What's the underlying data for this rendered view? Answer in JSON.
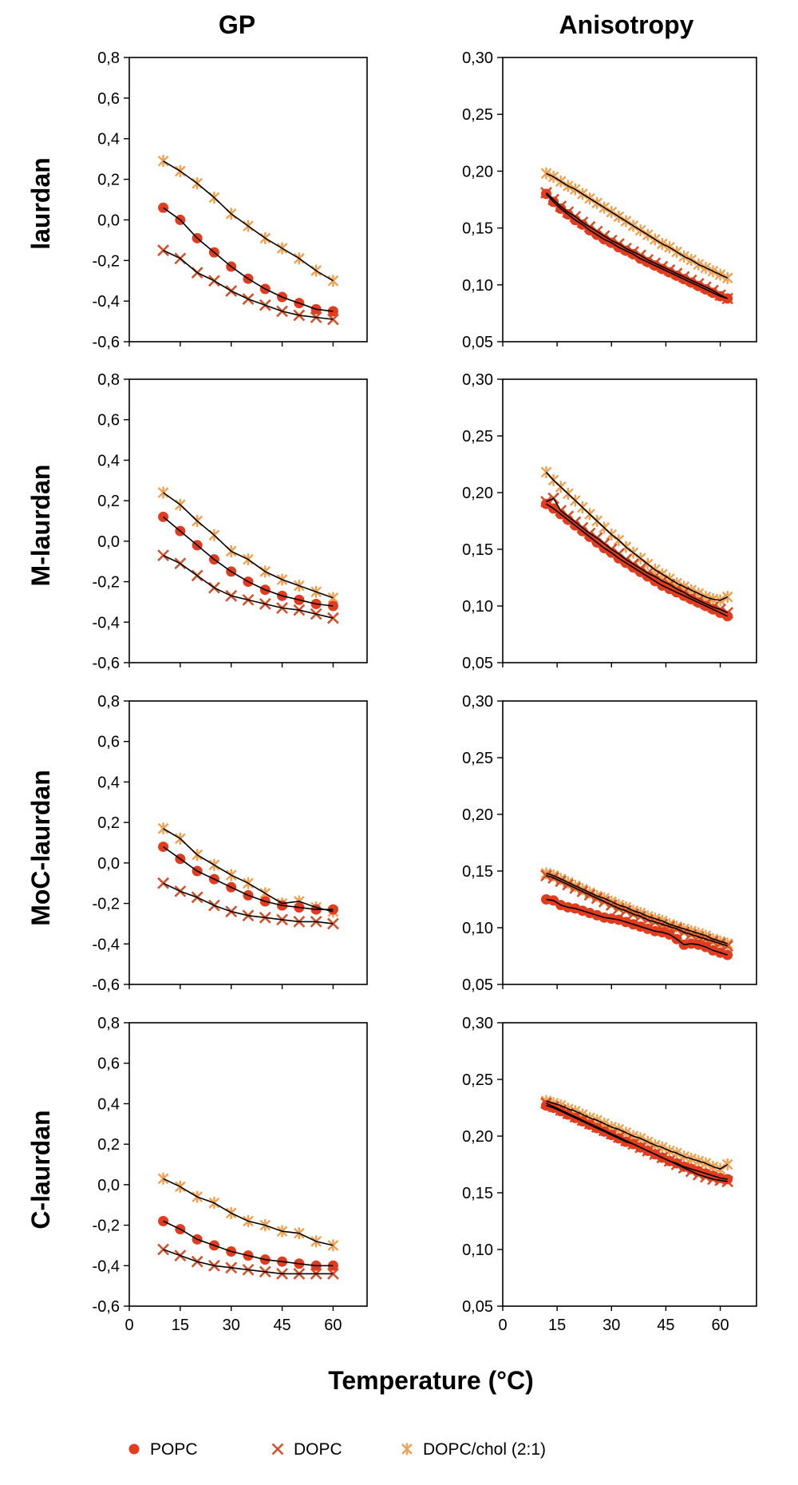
{
  "figure": {
    "column_titles": [
      "GP",
      "Anisotropy"
    ],
    "row_titles": [
      "laurdan",
      "M-laurdan",
      "MoC-laurdan",
      "C-laurdan"
    ],
    "xlabel": "Temperature (°C)"
  },
  "colors": {
    "POPC": "#e23c1e",
    "DOPC": "#d5512a",
    "DOPC/chol (2:1)": "#f0a050",
    "fit": "#000000"
  },
  "legend": [
    {
      "name": "POPC",
      "marker": "circle"
    },
    {
      "name": "DOPC",
      "marker": "cross"
    },
    {
      "name": "DOPC/chol (2:1)",
      "marker": "star"
    }
  ],
  "chart_data": [
    {
      "type": "line",
      "row": "laurdan",
      "column": "GP",
      "xlim": [
        0,
        70
      ],
      "ylim": [
        -0.6,
        0.8
      ],
      "xticks": [
        0,
        15,
        30,
        45,
        60
      ],
      "xtick_labels": [
        "0",
        "15",
        "30",
        "45",
        "60"
      ],
      "yticks": [
        -0.6,
        -0.4,
        -0.2,
        0.0,
        0.2,
        0.4,
        0.6,
        0.8
      ],
      "ytick_labels": [
        "-0,6",
        "-0,4",
        "-0,2",
        "0,0",
        "0,2",
        "0,4",
        "0,6",
        "0,8"
      ],
      "x": [
        10,
        15,
        20,
        25,
        30,
        35,
        40,
        45,
        50,
        55,
        60
      ],
      "series": [
        {
          "name": "POPC",
          "marker": "circle",
          "values": [
            0.06,
            0.0,
            -0.09,
            -0.16,
            -0.23,
            -0.29,
            -0.34,
            -0.38,
            -0.41,
            -0.44,
            -0.45
          ]
        },
        {
          "name": "DOPC",
          "marker": "cross",
          "values": [
            -0.15,
            -0.19,
            -0.26,
            -0.3,
            -0.35,
            -0.39,
            -0.42,
            -0.45,
            -0.47,
            -0.48,
            -0.49
          ]
        },
        {
          "name": "DOPC/chol (2:1)",
          "marker": "star",
          "values": [
            0.29,
            0.24,
            0.18,
            0.11,
            0.03,
            -0.03,
            -0.09,
            -0.14,
            -0.19,
            -0.25,
            -0.3
          ]
        }
      ]
    },
    {
      "type": "line",
      "row": "laurdan",
      "column": "Anisotropy",
      "xlim": [
        0,
        70
      ],
      "ylim": [
        0.05,
        0.3
      ],
      "xticks": [
        0,
        15,
        30,
        45,
        60
      ],
      "xtick_labels": [
        "0",
        "15",
        "30",
        "45",
        "60"
      ],
      "yticks": [
        0.05,
        0.1,
        0.15,
        0.2,
        0.25,
        0.3
      ],
      "ytick_labels": [
        "0,05",
        "0,10",
        "0,15",
        "0,20",
        "0,25",
        "0,30"
      ],
      "x": [
        12,
        14,
        16,
        18,
        20,
        22,
        24,
        26,
        28,
        30,
        32,
        34,
        36,
        38,
        40,
        42,
        44,
        46,
        48,
        50,
        52,
        54,
        56,
        58,
        60,
        62
      ],
      "series": [
        {
          "name": "POPC",
          "marker": "circle",
          "values": [
            0.18,
            0.173,
            0.167,
            0.162,
            0.157,
            0.153,
            0.148,
            0.144,
            0.14,
            0.137,
            0.133,
            0.13,
            0.127,
            0.123,
            0.12,
            0.117,
            0.114,
            0.111,
            0.108,
            0.105,
            0.102,
            0.099,
            0.096,
            0.093,
            0.09,
            0.088
          ]
        },
        {
          "name": "DOPC",
          "marker": "cross",
          "values": [
            0.181,
            0.175,
            0.169,
            0.164,
            0.16,
            0.155,
            0.151,
            0.147,
            0.143,
            0.139,
            0.136,
            0.132,
            0.129,
            0.126,
            0.122,
            0.119,
            0.116,
            0.113,
            0.11,
            0.107,
            0.104,
            0.101,
            0.098,
            0.095,
            0.091,
            0.088
          ]
        },
        {
          "name": "DOPC/chol (2:1)",
          "marker": "star",
          "values": [
            0.198,
            0.195,
            0.191,
            0.187,
            0.184,
            0.18,
            0.176,
            0.172,
            0.168,
            0.164,
            0.16,
            0.156,
            0.152,
            0.148,
            0.144,
            0.14,
            0.136,
            0.133,
            0.129,
            0.125,
            0.122,
            0.118,
            0.115,
            0.112,
            0.109,
            0.106
          ]
        }
      ]
    },
    {
      "type": "line",
      "row": "M-laurdan",
      "column": "GP",
      "xlim": [
        0,
        70
      ],
      "ylim": [
        -0.6,
        0.8
      ],
      "xticks": [
        0,
        15,
        30,
        45,
        60
      ],
      "xtick_labels": [
        "0",
        "15",
        "30",
        "45",
        "60"
      ],
      "yticks": [
        -0.6,
        -0.4,
        -0.2,
        0.0,
        0.2,
        0.4,
        0.6,
        0.8
      ],
      "ytick_labels": [
        "-0,6",
        "-0,4",
        "-0,2",
        "0,0",
        "0,2",
        "0,4",
        "0,6",
        "0,8"
      ],
      "x": [
        10,
        15,
        20,
        25,
        30,
        35,
        40,
        45,
        50,
        55,
        60
      ],
      "series": [
        {
          "name": "POPC",
          "marker": "circle",
          "values": [
            0.12,
            0.05,
            -0.02,
            -0.09,
            -0.15,
            -0.2,
            -0.24,
            -0.27,
            -0.29,
            -0.31,
            -0.32
          ]
        },
        {
          "name": "DOPC",
          "marker": "cross",
          "values": [
            -0.07,
            -0.11,
            -0.17,
            -0.23,
            -0.27,
            -0.29,
            -0.31,
            -0.33,
            -0.34,
            -0.36,
            -0.38
          ]
        },
        {
          "name": "DOPC/chol (2:1)",
          "marker": "star",
          "values": [
            0.24,
            0.18,
            0.1,
            0.03,
            -0.05,
            -0.09,
            -0.15,
            -0.19,
            -0.22,
            -0.25,
            -0.28
          ]
        }
      ]
    },
    {
      "type": "line",
      "row": "M-laurdan",
      "column": "Anisotropy",
      "xlim": [
        0,
        70
      ],
      "ylim": [
        0.05,
        0.3
      ],
      "xticks": [
        0,
        15,
        30,
        45,
        60
      ],
      "xtick_labels": [
        "0",
        "15",
        "30",
        "45",
        "60"
      ],
      "yticks": [
        0.05,
        0.1,
        0.15,
        0.2,
        0.25,
        0.3
      ],
      "ytick_labels": [
        "0,05",
        "0,10",
        "0,15",
        "0,20",
        "0,25",
        "0,30"
      ],
      "x": [
        12,
        14,
        16,
        18,
        20,
        22,
        24,
        26,
        28,
        30,
        32,
        34,
        36,
        38,
        40,
        42,
        44,
        46,
        48,
        50,
        52,
        54,
        56,
        58,
        60,
        62
      ],
      "series": [
        {
          "name": "POPC",
          "marker": "circle",
          "values": [
            0.19,
            0.186,
            0.181,
            0.176,
            0.171,
            0.166,
            0.161,
            0.156,
            0.151,
            0.147,
            0.142,
            0.138,
            0.134,
            0.13,
            0.126,
            0.122,
            0.118,
            0.115,
            0.112,
            0.109,
            0.106,
            0.103,
            0.1,
            0.097,
            0.094,
            0.091
          ]
        },
        {
          "name": "DOPC",
          "marker": "cross",
          "values": [
            0.192,
            0.195,
            0.184,
            0.179,
            0.174,
            0.169,
            0.164,
            0.16,
            0.155,
            0.15,
            0.146,
            0.141,
            0.137,
            0.133,
            0.129,
            0.126,
            0.122,
            0.119,
            0.115,
            0.112,
            0.108,
            0.105,
            0.102,
            0.099,
            0.097,
            0.094
          ]
        },
        {
          "name": "DOPC/chol (2:1)",
          "marker": "star",
          "values": [
            0.218,
            0.211,
            0.205,
            0.199,
            0.193,
            0.187,
            0.181,
            0.175,
            0.169,
            0.163,
            0.158,
            0.152,
            0.147,
            0.142,
            0.137,
            0.132,
            0.128,
            0.124,
            0.12,
            0.117,
            0.114,
            0.111,
            0.108,
            0.106,
            0.105,
            0.108
          ]
        }
      ]
    },
    {
      "type": "line",
      "row": "MoC-laurdan",
      "column": "GP",
      "xlim": [
        0,
        70
      ],
      "ylim": [
        -0.6,
        0.8
      ],
      "xticks": [
        0,
        15,
        30,
        45,
        60
      ],
      "xtick_labels": [
        "0",
        "15",
        "30",
        "45",
        "60"
      ],
      "yticks": [
        -0.6,
        -0.4,
        -0.2,
        0.0,
        0.2,
        0.4,
        0.6,
        0.8
      ],
      "ytick_labels": [
        "-0,6",
        "-0,4",
        "-0,2",
        "0,0",
        "0,2",
        "0,4",
        "0,6",
        "0,8"
      ],
      "x": [
        10,
        15,
        20,
        25,
        30,
        35,
        40,
        45,
        50,
        55,
        60
      ],
      "series": [
        {
          "name": "POPC",
          "marker": "circle",
          "values": [
            0.08,
            0.02,
            -0.04,
            -0.08,
            -0.12,
            -0.16,
            -0.19,
            -0.21,
            -0.22,
            -0.23,
            -0.23
          ]
        },
        {
          "name": "DOPC",
          "marker": "cross",
          "values": [
            -0.1,
            -0.14,
            -0.17,
            -0.21,
            -0.24,
            -0.26,
            -0.27,
            -0.28,
            -0.29,
            -0.29,
            -0.3
          ]
        },
        {
          "name": "DOPC/chol (2:1)",
          "marker": "star",
          "values": [
            0.17,
            0.12,
            0.04,
            -0.01,
            -0.06,
            -0.1,
            -0.15,
            -0.2,
            -0.19,
            -0.22,
            -0.24
          ]
        }
      ]
    },
    {
      "type": "line",
      "row": "MoC-laurdan",
      "column": "Anisotropy",
      "xlim": [
        0,
        70
      ],
      "ylim": [
        0.05,
        0.3
      ],
      "xticks": [
        0,
        15,
        30,
        45,
        60
      ],
      "xtick_labels": [
        "0",
        "15",
        "30",
        "45",
        "60"
      ],
      "yticks": [
        0.05,
        0.1,
        0.15,
        0.2,
        0.25,
        0.3
      ],
      "ytick_labels": [
        "0,05",
        "0,10",
        "0,15",
        "0,20",
        "0,25",
        "0,30"
      ],
      "x": [
        12,
        14,
        16,
        18,
        20,
        22,
        24,
        26,
        28,
        30,
        32,
        34,
        36,
        38,
        40,
        42,
        44,
        46,
        48,
        50,
        52,
        54,
        56,
        58,
        60,
        62
      ],
      "series": [
        {
          "name": "POPC",
          "marker": "circle",
          "values": [
            0.125,
            0.124,
            0.12,
            0.118,
            0.117,
            0.115,
            0.113,
            0.111,
            0.109,
            0.108,
            0.107,
            0.105,
            0.103,
            0.101,
            0.099,
            0.097,
            0.096,
            0.094,
            0.09,
            0.085,
            0.086,
            0.085,
            0.083,
            0.08,
            0.078,
            0.076
          ]
        },
        {
          "name": "DOPC",
          "marker": "cross",
          "values": [
            0.146,
            0.144,
            0.141,
            0.138,
            0.135,
            0.132,
            0.129,
            0.126,
            0.123,
            0.12,
            0.117,
            0.115,
            0.112,
            0.11,
            0.107,
            0.105,
            0.103,
            0.101,
            0.099,
            0.096,
            0.094,
            0.092,
            0.09,
            0.088,
            0.086,
            0.084
          ]
        },
        {
          "name": "DOPC/chol (2:1)",
          "marker": "star",
          "values": [
            0.148,
            0.146,
            0.143,
            0.14,
            0.137,
            0.134,
            0.131,
            0.128,
            0.126,
            0.123,
            0.12,
            0.118,
            0.115,
            0.113,
            0.11,
            0.108,
            0.106,
            0.103,
            0.101,
            0.099,
            0.097,
            0.095,
            0.093,
            0.09,
            0.088,
            0.086
          ]
        }
      ]
    },
    {
      "type": "line",
      "row": "C-laurdan",
      "column": "GP",
      "xlim": [
        0,
        70
      ],
      "ylim": [
        -0.6,
        0.8
      ],
      "xticks": [
        0,
        15,
        30,
        45,
        60
      ],
      "xtick_labels": [
        "0",
        "15",
        "30",
        "45",
        "60"
      ],
      "yticks": [
        -0.6,
        -0.4,
        -0.2,
        0.0,
        0.2,
        0.4,
        0.6,
        0.8
      ],
      "ytick_labels": [
        "-0,6",
        "-0,4",
        "-0,2",
        "0,0",
        "0,2",
        "0,4",
        "0,6",
        "0,8"
      ],
      "x": [
        10,
        15,
        20,
        25,
        30,
        35,
        40,
        45,
        50,
        55,
        60
      ],
      "series": [
        {
          "name": "POPC",
          "marker": "circle",
          "values": [
            -0.18,
            -0.22,
            -0.27,
            -0.3,
            -0.33,
            -0.35,
            -0.37,
            -0.38,
            -0.39,
            -0.4,
            -0.4
          ]
        },
        {
          "name": "DOPC",
          "marker": "cross",
          "values": [
            -0.32,
            -0.35,
            -0.38,
            -0.4,
            -0.41,
            -0.42,
            -0.43,
            -0.44,
            -0.44,
            -0.44,
            -0.44
          ]
        },
        {
          "name": "DOPC/chol (2:1)",
          "marker": "star",
          "values": [
            0.03,
            -0.01,
            -0.06,
            -0.09,
            -0.14,
            -0.18,
            -0.2,
            -0.23,
            -0.24,
            -0.28,
            -0.3
          ]
        }
      ]
    },
    {
      "type": "line",
      "row": "C-laurdan",
      "column": "Anisotropy",
      "xlim": [
        0,
        70
      ],
      "ylim": [
        0.05,
        0.3
      ],
      "xticks": [
        0,
        15,
        30,
        45,
        60
      ],
      "xtick_labels": [
        "0",
        "15",
        "30",
        "45",
        "60"
      ],
      "yticks": [
        0.05,
        0.1,
        0.15,
        0.2,
        0.25,
        0.3
      ],
      "ytick_labels": [
        "0,05",
        "0,10",
        "0,15",
        "0,20",
        "0,25",
        "0,30"
      ],
      "x": [
        12,
        14,
        16,
        18,
        20,
        22,
        24,
        26,
        28,
        30,
        32,
        34,
        36,
        38,
        40,
        42,
        44,
        46,
        48,
        50,
        52,
        54,
        56,
        58,
        60,
        62
      ],
      "series": [
        {
          "name": "POPC",
          "marker": "circle",
          "values": [
            0.227,
            0.225,
            0.222,
            0.219,
            0.216,
            0.213,
            0.21,
            0.207,
            0.204,
            0.201,
            0.198,
            0.195,
            0.193,
            0.19,
            0.187,
            0.184,
            0.181,
            0.178,
            0.176,
            0.173,
            0.171,
            0.169,
            0.167,
            0.165,
            0.163,
            0.162
          ]
        },
        {
          "name": "DOPC",
          "marker": "cross",
          "values": [
            0.229,
            0.226,
            0.223,
            0.22,
            0.217,
            0.214,
            0.211,
            0.208,
            0.205,
            0.202,
            0.199,
            0.196,
            0.193,
            0.19,
            0.187,
            0.184,
            0.181,
            0.178,
            0.175,
            0.172,
            0.169,
            0.166,
            0.164,
            0.162,
            0.161,
            0.16
          ]
        },
        {
          "name": "DOPC/chol (2:1)",
          "marker": "star",
          "values": [
            0.231,
            0.229,
            0.227,
            0.224,
            0.222,
            0.219,
            0.216,
            0.214,
            0.211,
            0.208,
            0.206,
            0.203,
            0.2,
            0.198,
            0.195,
            0.192,
            0.19,
            0.187,
            0.185,
            0.182,
            0.18,
            0.178,
            0.176,
            0.173,
            0.171,
            0.175
          ]
        }
      ]
    }
  ]
}
